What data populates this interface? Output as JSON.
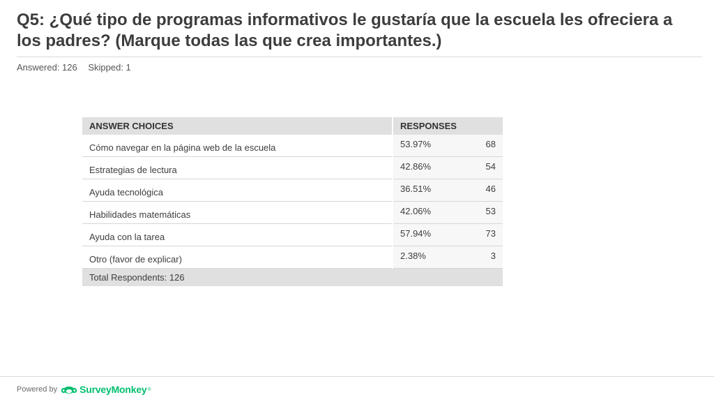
{
  "question": {
    "title": "Q5: ¿Qué tipo de programas informativos le gustaría que la escuela les ofreciera a los padres? (Marque todas las que crea importantes.)"
  },
  "stats": {
    "answered": "Answered: 126",
    "skipped": "Skipped: 1"
  },
  "table": {
    "headers": {
      "choices": "ANSWER CHOICES",
      "responses": "RESPONSES"
    },
    "rows": [
      {
        "choice": "Cómo navegar en la página web de la escuela",
        "percent": "53.97%",
        "count": "68"
      },
      {
        "choice": "Estrategias de lectura",
        "percent": "42.86%",
        "count": "54"
      },
      {
        "choice": "Ayuda tecnológica",
        "percent": "36.51%",
        "count": "46"
      },
      {
        "choice": "Habilidades matemáticas",
        "percent": "42.06%",
        "count": "53"
      },
      {
        "choice": "Ayuda con la tarea",
        "percent": "57.94%",
        "count": "73"
      },
      {
        "choice": "Otro (favor de explicar)",
        "percent": "2.38%",
        "count": "3"
      }
    ],
    "total": "Total Respondents: 126"
  },
  "footer": {
    "powered_by": "Powered by",
    "brand": "SurveyMonkey",
    "brand_mark": "®",
    "logo_icon": "surveymonkey-logo-icon",
    "brand_color": "#00bf6f"
  }
}
